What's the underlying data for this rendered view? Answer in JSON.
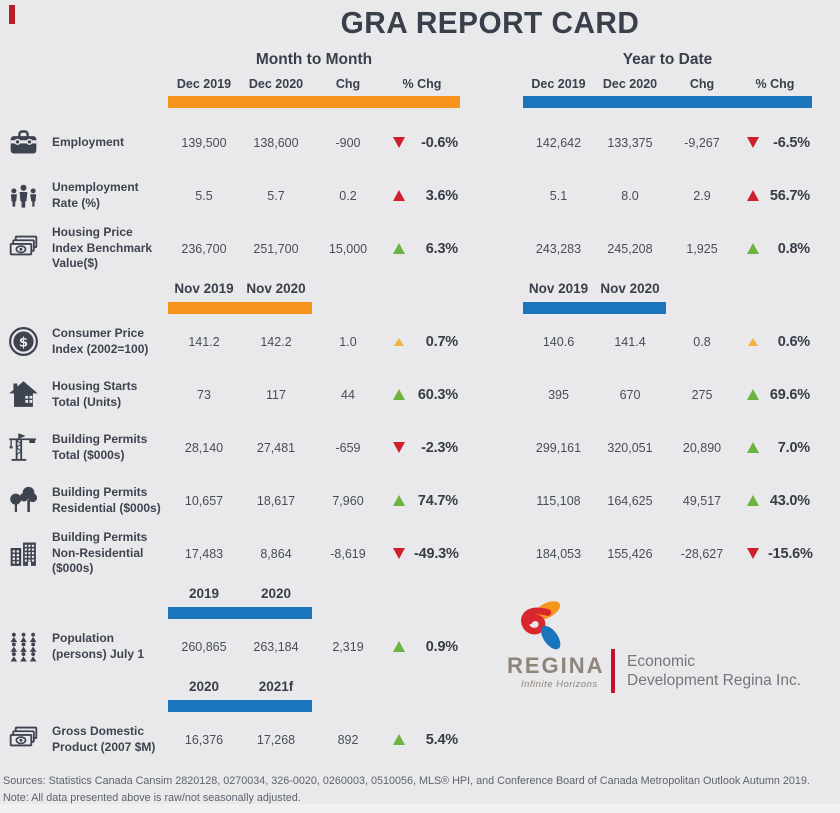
{
  "title": "GRA REPORT CARD",
  "colors": {
    "orange": "#f7941d",
    "blue": "#1b75bc",
    "red": "#cd202c",
    "green": "#6cb33f",
    "yellow": "#f1b53d",
    "ink": "#3d4450",
    "corner_red": "#b7202a",
    "divider_red": "#c8102e"
  },
  "sections": {
    "month_to_month": {
      "title": "Month to Month",
      "columns": [
        "Dec 2019",
        "Dec 2020",
        "Chg",
        "% Chg"
      ],
      "bar": "orange"
    },
    "year_to_date": {
      "title": "Year to Date",
      "columns": [
        "Dec 2019",
        "Dec 2020",
        "Chg",
        "% Chg"
      ],
      "bar": "blue"
    }
  },
  "rows": [
    {
      "type": "data",
      "icon": "briefcase-icon",
      "label": "Employment",
      "m2m": {
        "v1": "139,500",
        "v2": "138,600",
        "chg": "-900",
        "dir": "down",
        "trend": "red",
        "pct": "-0.6%"
      },
      "ytd": {
        "v1": "142,642",
        "v2": "133,375",
        "chg": "-9,267",
        "dir": "down",
        "trend": "red",
        "pct": "-6.5%"
      }
    },
    {
      "type": "data",
      "icon": "people-icon",
      "label": "Unemployment Rate (%)",
      "m2m": {
        "v1": "5.5",
        "v2": "5.7",
        "chg": "0.2",
        "dir": "up",
        "trend": "red",
        "pct": "3.6%"
      },
      "ytd": {
        "v1": "5.1",
        "v2": "8.0",
        "chg": "2.9",
        "dir": "up",
        "trend": "red",
        "pct": "56.7%"
      }
    },
    {
      "type": "data",
      "icon": "banknotes-icon",
      "label": "Housing Price Index Benchmark Value($)",
      "m2m": {
        "v1": "236,700",
        "v2": "251,700",
        "chg": "15,000",
        "dir": "up",
        "trend": "green",
        "pct": "6.3%"
      },
      "ytd": {
        "v1": "243,283",
        "v2": "245,208",
        "chg": "1,925",
        "dir": "up",
        "trend": "green",
        "pct": "0.8%"
      }
    },
    {
      "type": "subheader",
      "left": {
        "labels": [
          "Nov 2019",
          "Nov 2020"
        ],
        "bar": "orange"
      },
      "right": {
        "labels": [
          "Nov 2019",
          "Nov 2020"
        ],
        "bar": "blue"
      }
    },
    {
      "type": "data",
      "icon": "dollar-circle-icon",
      "label": "Consumer Price Index (2002=100)",
      "m2m": {
        "v1": "141.2",
        "v2": "142.2",
        "chg": "1.0",
        "dir": "up",
        "trend": "yellow",
        "pct": "0.7%"
      },
      "ytd": {
        "v1": "140.6",
        "v2": "141.4",
        "chg": "0.8",
        "dir": "up",
        "trend": "yellow",
        "pct": "0.6%"
      }
    },
    {
      "type": "data",
      "icon": "house-icon",
      "label": "Housing Starts Total (Units)",
      "m2m": {
        "v1": "73",
        "v2": "117",
        "chg": "44",
        "dir": "up",
        "trend": "green",
        "pct": "60.3%"
      },
      "ytd": {
        "v1": "395",
        "v2": "670",
        "chg": "275",
        "dir": "up",
        "trend": "green",
        "pct": "69.6%"
      }
    },
    {
      "type": "data",
      "icon": "crane-icon",
      "label": "Building Permits Total ($000s)",
      "m2m": {
        "v1": "28,140",
        "v2": "27,481",
        "chg": "-659",
        "dir": "down",
        "trend": "red",
        "pct": "-2.3%"
      },
      "ytd": {
        "v1": "299,161",
        "v2": "320,051",
        "chg": "20,890",
        "dir": "up",
        "trend": "green",
        "pct": "7.0%"
      }
    },
    {
      "type": "data",
      "icon": "trees-icon",
      "label": "Building Permits Residential ($000s)",
      "m2m": {
        "v1": "10,657",
        "v2": "18,617",
        "chg": "7,960",
        "dir": "up",
        "trend": "green",
        "pct": "74.7%"
      },
      "ytd": {
        "v1": "115,108",
        "v2": "164,625",
        "chg": "49,517",
        "dir": "up",
        "trend": "green",
        "pct": "43.0%"
      }
    },
    {
      "type": "data",
      "icon": "buildings-icon",
      "label": "Building Permits Non-Residential ($000s)",
      "m2m": {
        "v1": "17,483",
        "v2": "8,864",
        "chg": "-8,619",
        "dir": "down",
        "trend": "red",
        "pct": "-49.3%"
      },
      "ytd": {
        "v1": "184,053",
        "v2": "155,426",
        "chg": "-28,627",
        "dir": "down",
        "trend": "red",
        "pct": "-15.6%"
      }
    },
    {
      "type": "subheader",
      "left": {
        "labels": [
          "2019",
          "2020"
        ],
        "bar": "blue"
      },
      "right": null
    },
    {
      "type": "data",
      "icon": "population-icon",
      "label": "Population (persons) July 1",
      "m2m": {
        "v1": "260,865",
        "v2": "263,184",
        "chg": "2,319",
        "dir": "up",
        "trend": "green",
        "pct": "0.9%"
      },
      "ytd": null
    },
    {
      "type": "subheader",
      "left": {
        "labels": [
          "2020",
          "2021f"
        ],
        "bar": "blue"
      },
      "right": null
    },
    {
      "type": "data",
      "icon": "banknotes-icon",
      "label": "Gross Domestic Product (2007 $M)",
      "m2m": {
        "v1": "16,376",
        "v2": "17,268",
        "chg": "892",
        "dir": "up",
        "trend": "green",
        "pct": "5.4%"
      },
      "ytd": null
    }
  ],
  "logo": {
    "brand": "REGINA",
    "tagline": "Infinite Horizons",
    "org_line1": "Economic",
    "org_line2": "Development Regina Inc."
  },
  "footer": {
    "sources": "Sources: Statistics Canada Cansim 2820128, 0270034, 326-0020, 0260003, 0510056, MLS® HPI, and Conference Board of Canada Metropolitan Outlook Autumn 2019.",
    "note": "Note: All data presented above is raw/not seasonally adjusted."
  }
}
